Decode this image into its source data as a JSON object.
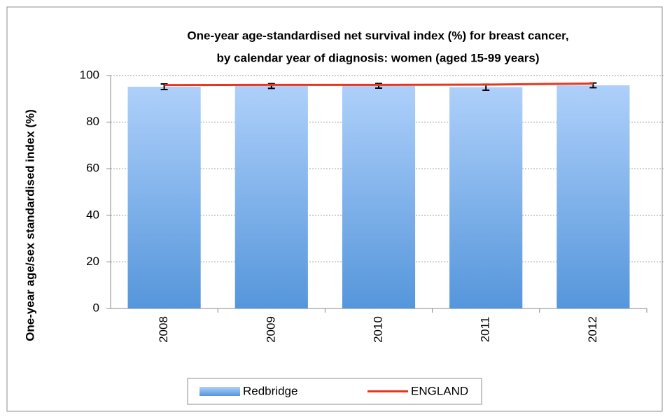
{
  "chart_data": {
    "type": "bar",
    "title": [
      "One-year age-standardised net survival index (%) for breast cancer,",
      "by calendar year of diagnosis: women (aged 15-99 years)"
    ],
    "y_label": "One-year age/sex standardised index (%)",
    "categories": [
      "2008",
      "2009",
      "2010",
      "2011",
      "2012"
    ],
    "series": [
      {
        "name": "Redbridge",
        "type": "bar",
        "color": "#6fa7e6",
        "values": [
          95.2,
          95.5,
          95.6,
          95.0,
          95.8
        ],
        "errors": [
          1.2,
          1.0,
          1.0,
          1.3,
          1.0
        ]
      },
      {
        "name": "ENGLAND",
        "type": "line",
        "color": "#e8361e",
        "values": [
          95.9,
          96.0,
          96.0,
          96.1,
          96.6
        ]
      }
    ],
    "ylim": [
      0,
      100
    ],
    "yticks": [
      0,
      20,
      40,
      60,
      80,
      100
    ],
    "grid": true
  }
}
